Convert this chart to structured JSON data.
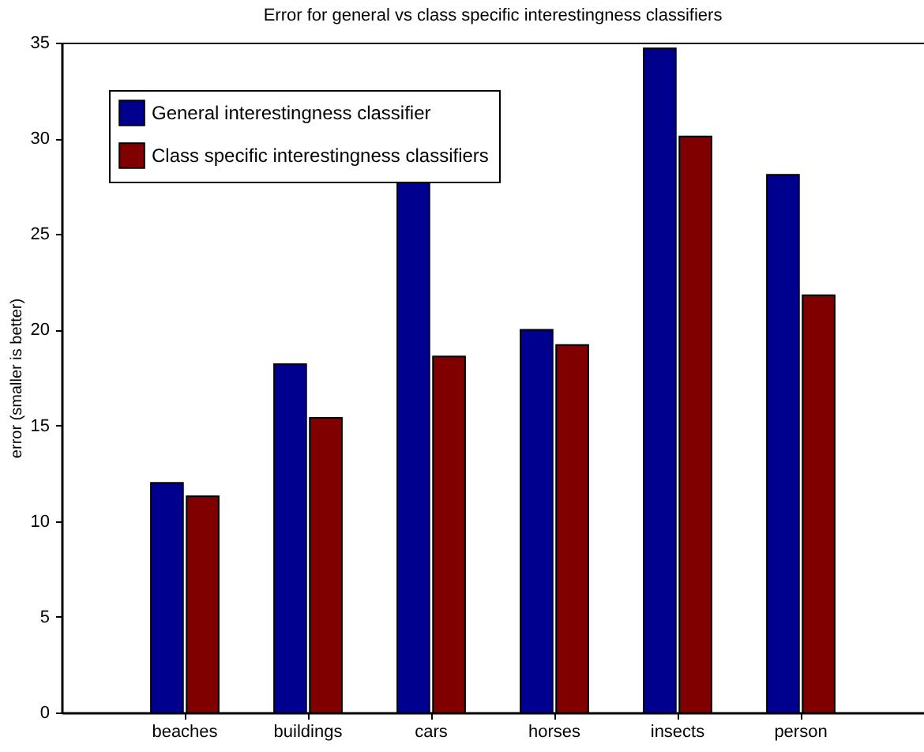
{
  "chart_data": {
    "type": "bar",
    "title": "Error for general vs class specific interestingness classifiers",
    "ylabel": "error (smaller is better)",
    "categories": [
      "beaches",
      "buildings",
      "cars",
      "horses",
      "insects",
      "person"
    ],
    "series": [
      {
        "name": "General interestingness classifier",
        "color": "#00008f",
        "values": [
          12.0,
          18.2,
          27.7,
          20.0,
          34.7,
          28.1
        ]
      },
      {
        "name": "Class specific interestingness classifiers",
        "color": "#800000",
        "values": [
          11.3,
          15.4,
          18.6,
          19.2,
          30.1,
          21.8
        ]
      }
    ],
    "ylim": [
      0,
      35
    ],
    "yticks": [
      0,
      5,
      10,
      15,
      20,
      25,
      30,
      35
    ],
    "grid": false,
    "legend": "top left"
  }
}
